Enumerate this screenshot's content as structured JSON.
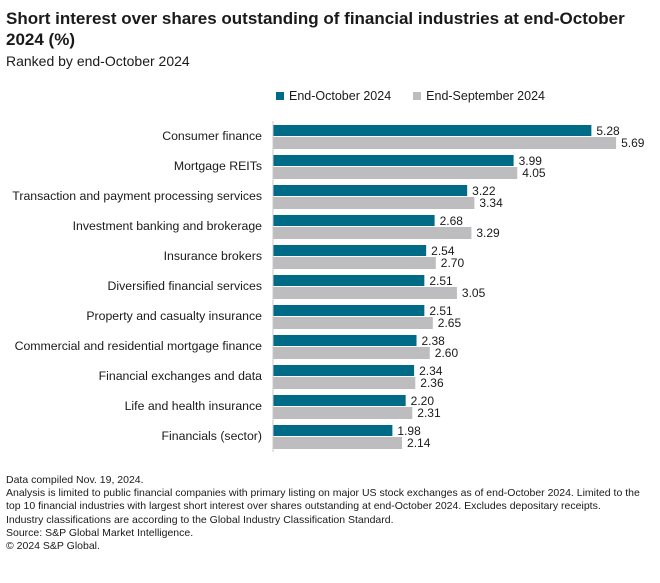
{
  "chart_data": {
    "type": "bar",
    "orientation": "horizontal",
    "title": "Short interest over shares outstanding of financial industries at end-October 2024 (%)",
    "subtitle": "Ranked by end-October 2024",
    "categories": [
      "Consumer finance",
      "Mortgage REITs",
      "Transaction and payment processing services",
      "Investment banking and brokerage",
      "Insurance brokers",
      "Diversified financial services",
      "Property and casualty insurance",
      "Commercial and residential mortgage finance",
      "Financial exchanges and data",
      "Life and health insurance",
      "Financials (sector)"
    ],
    "series": [
      {
        "name": "End-October 2024",
        "color": "#006b86",
        "values": [
          5.28,
          3.99,
          3.22,
          2.68,
          2.54,
          2.51,
          2.51,
          2.38,
          2.34,
          2.2,
          1.98
        ]
      },
      {
        "name": "End-September 2024",
        "color": "#bdbdbf",
        "values": [
          5.69,
          4.05,
          3.34,
          3.29,
          2.7,
          3.05,
          2.65,
          2.6,
          2.36,
          2.31,
          2.14
        ]
      }
    ],
    "xlim": [
      0,
      6
    ],
    "grid": false,
    "data_labels": true,
    "legend_placement": "top"
  },
  "notes": [
    "Data compiled Nov. 19, 2024.",
    "Analysis is limited to public financial companies with primary listing on major US stock exchanges as of end-October 2024. Limited to the top 10 financial industries with largest short interest over shares outstanding at end-October 2024. Excludes depositary receipts.",
    "Industry classifications are according to the Global Industry Classification Standard.",
    "Source: S&P Global Market Intelligence.",
    "© 2024 S&P Global."
  ]
}
